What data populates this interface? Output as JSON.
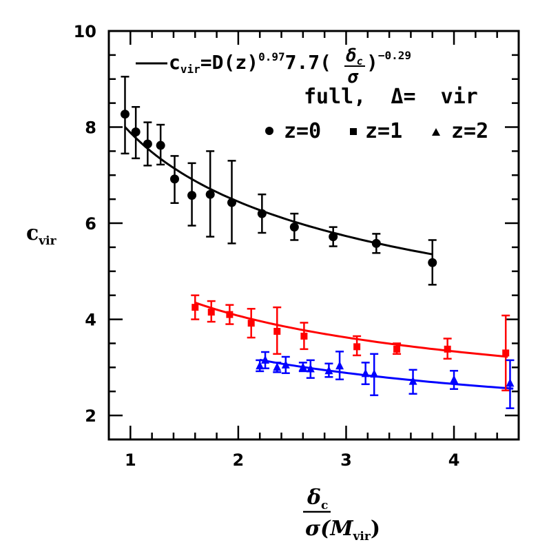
{
  "chart_data": {
    "type": "scatter",
    "xlabel": {
      "numerator": "δ",
      "numerator_sub": "c",
      "denominator": "σ(M",
      "denominator_sub": "vir",
      "denominator_close": ")"
    },
    "ylabel": {
      "main": "c",
      "sub": "vir"
    },
    "xlim": [
      0.8,
      4.6
    ],
    "ylim": [
      1.5,
      10
    ],
    "x_ticks": [
      1,
      2,
      3,
      4
    ],
    "y_ticks": [
      2,
      4,
      6,
      8,
      10
    ],
    "grid": false,
    "annotations": {
      "fit": {
        "lhs": "c",
        "lhs_sub": "vir",
        "middle": "=D(z)",
        "exp1": "0.97",
        "coef": "7.7(",
        "frac_num": "δ",
        "frac_num_sub": "c",
        "frac_den": "σ",
        "close": ")",
        "exp2": "−0.29"
      },
      "model": "full,  Δ=  vir",
      "legend": [
        {
          "marker": "circle",
          "label": "z=0",
          "color": "#000000"
        },
        {
          "marker": "square",
          "label": "z=1",
          "color": "#000000"
        },
        {
          "marker": "triangle",
          "label": "z=2",
          "color": "#000000"
        }
      ]
    },
    "series": [
      {
        "z": 0,
        "marker": "circle",
        "color": "#000000",
        "fit_color": "#000000",
        "fit_range": [
          0.95,
          3.8
        ],
        "points": [
          {
            "x": 0.95,
            "y": 8.27,
            "lo": 7.45,
            "hi": 9.05
          },
          {
            "x": 1.05,
            "y": 7.9,
            "lo": 7.35,
            "hi": 8.42
          },
          {
            "x": 1.16,
            "y": 7.65,
            "lo": 7.2,
            "hi": 8.1
          },
          {
            "x": 1.28,
            "y": 7.62,
            "lo": 7.22,
            "hi": 8.05
          },
          {
            "x": 1.41,
            "y": 6.92,
            "lo": 6.42,
            "hi": 7.4
          },
          {
            "x": 1.57,
            "y": 6.58,
            "lo": 5.95,
            "hi": 7.25
          },
          {
            "x": 1.74,
            "y": 6.6,
            "lo": 5.72,
            "hi": 7.5
          },
          {
            "x": 1.94,
            "y": 6.43,
            "lo": 5.58,
            "hi": 7.3
          },
          {
            "x": 2.22,
            "y": 6.2,
            "lo": 5.8,
            "hi": 6.6
          },
          {
            "x": 2.52,
            "y": 5.92,
            "lo": 5.65,
            "hi": 6.2
          },
          {
            "x": 2.88,
            "y": 5.72,
            "lo": 5.52,
            "hi": 5.92
          },
          {
            "x": 3.28,
            "y": 5.58,
            "lo": 5.38,
            "hi": 5.78
          },
          {
            "x": 3.8,
            "y": 5.18,
            "lo": 4.72,
            "hi": 5.65
          }
        ]
      },
      {
        "z": 1,
        "marker": "square",
        "color": "#ff0000",
        "fit_color": "#ff0000",
        "fit_range": [
          1.6,
          4.5
        ],
        "points": [
          {
            "x": 1.6,
            "y": 4.25,
            "lo": 4.0,
            "hi": 4.5
          },
          {
            "x": 1.75,
            "y": 4.15,
            "lo": 3.95,
            "hi": 4.38
          },
          {
            "x": 1.92,
            "y": 4.1,
            "lo": 3.9,
            "hi": 4.3
          },
          {
            "x": 2.12,
            "y": 3.92,
            "lo": 3.62,
            "hi": 4.22
          },
          {
            "x": 2.36,
            "y": 3.75,
            "lo": 3.28,
            "hi": 4.25
          },
          {
            "x": 2.61,
            "y": 3.65,
            "lo": 3.38,
            "hi": 3.93
          },
          {
            "x": 3.1,
            "y": 3.43,
            "lo": 3.25,
            "hi": 3.65
          },
          {
            "x": 3.47,
            "y": 3.38,
            "lo": 3.28,
            "hi": 3.5
          },
          {
            "x": 3.94,
            "y": 3.38,
            "lo": 3.18,
            "hi": 3.6
          },
          {
            "x": 4.48,
            "y": 3.3,
            "lo": 2.52,
            "hi": 4.08
          }
        ]
      },
      {
        "z": 2,
        "marker": "triangle",
        "color": "#0000ff",
        "fit_color": "#0000ff",
        "fit_range": [
          2.2,
          4.55
        ],
        "points": [
          {
            "x": 2.2,
            "y": 3.03,
            "lo": 2.92,
            "hi": 3.15
          },
          {
            "x": 2.25,
            "y": 3.15,
            "lo": 2.98,
            "hi": 3.32
          },
          {
            "x": 2.36,
            "y": 3.0,
            "lo": 2.9,
            "hi": 3.1
          },
          {
            "x": 2.44,
            "y": 3.05,
            "lo": 2.88,
            "hi": 3.22
          },
          {
            "x": 2.6,
            "y": 3.0,
            "lo": 2.92,
            "hi": 3.1
          },
          {
            "x": 2.67,
            "y": 2.97,
            "lo": 2.78,
            "hi": 3.15
          },
          {
            "x": 2.84,
            "y": 2.93,
            "lo": 2.8,
            "hi": 3.08
          },
          {
            "x": 2.94,
            "y": 3.03,
            "lo": 2.75,
            "hi": 3.33
          },
          {
            "x": 3.18,
            "y": 2.87,
            "lo": 2.65,
            "hi": 3.1
          },
          {
            "x": 3.26,
            "y": 2.86,
            "lo": 2.42,
            "hi": 3.28
          },
          {
            "x": 3.62,
            "y": 2.71,
            "lo": 2.45,
            "hi": 2.95
          },
          {
            "x": 4.0,
            "y": 2.74,
            "lo": 2.55,
            "hi": 2.93
          },
          {
            "x": 4.52,
            "y": 2.67,
            "lo": 2.15,
            "hi": 3.15
          }
        ]
      }
    ]
  }
}
